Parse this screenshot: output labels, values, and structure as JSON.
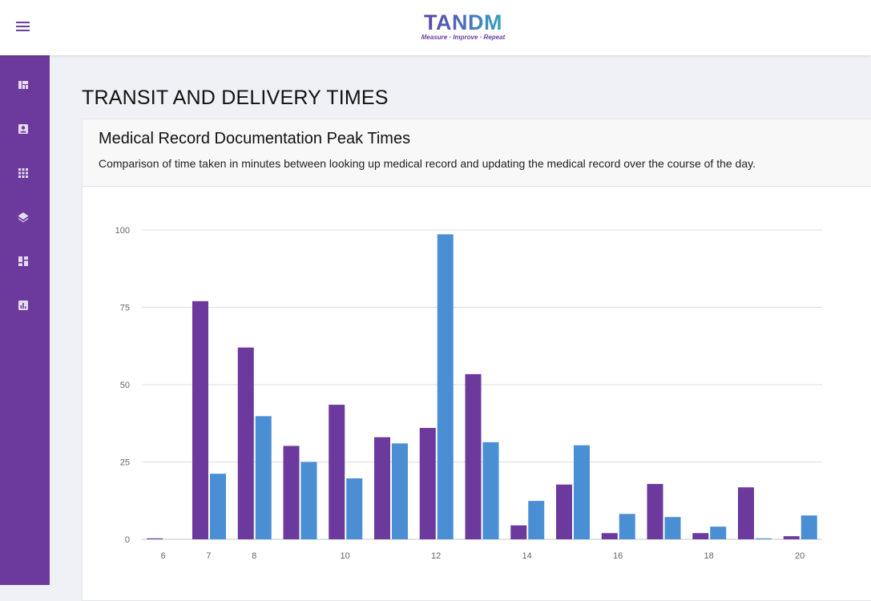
{
  "header": {
    "logo_text": "TANDM",
    "logo_tagline": "Measure · Improve · Repeat"
  },
  "sidebar": {
    "items": [
      {
        "icon": "view-quilt-icon"
      },
      {
        "icon": "contact-card-icon"
      },
      {
        "icon": "apps-grid-icon"
      },
      {
        "icon": "layers-icon"
      },
      {
        "icon": "dashboard-icon"
      },
      {
        "icon": "bar-chart-icon"
      }
    ]
  },
  "page": {
    "title": "TRANSIT AND DELIVERY TIMES"
  },
  "card": {
    "title": "Medical Record Documentation Peak Times",
    "subtitle": "Comparison of time taken in minutes between looking up medical record and updating the medical record over the course of the day."
  },
  "colors": {
    "primary": "#6b3a9c",
    "series_lookup": "#6b3a9c",
    "series_update": "#4a8fd4"
  },
  "chart_data": {
    "type": "bar",
    "title": "",
    "xlabel": "",
    "ylabel": "",
    "ylim": [
      0,
      100
    ],
    "yticks": [
      0,
      25,
      50,
      75,
      100
    ],
    "x": [
      6,
      7,
      8,
      9,
      10,
      11,
      12,
      13,
      14,
      15,
      16,
      17,
      18,
      19,
      20
    ],
    "xtick_labels": [
      "6",
      "7",
      "8",
      "10",
      "12",
      "14",
      "16",
      "18",
      "20"
    ],
    "xtick_values": [
      6,
      7,
      8,
      10,
      12,
      14,
      16,
      18,
      20
    ],
    "grid": true,
    "legend": "none",
    "series": [
      {
        "values": [
          0.3,
          77,
          62,
          30.2,
          43.5,
          33,
          36,
          53.4,
          4.5,
          17.7,
          2,
          17.9,
          2,
          16.8,
          1
        ]
      },
      {
        "values": [
          0,
          21.2,
          39.8,
          25,
          19.7,
          31,
          98.6,
          31.4,
          12.4,
          30.4,
          8.2,
          7.2,
          4.1,
          0.3,
          7.7
        ]
      }
    ]
  }
}
